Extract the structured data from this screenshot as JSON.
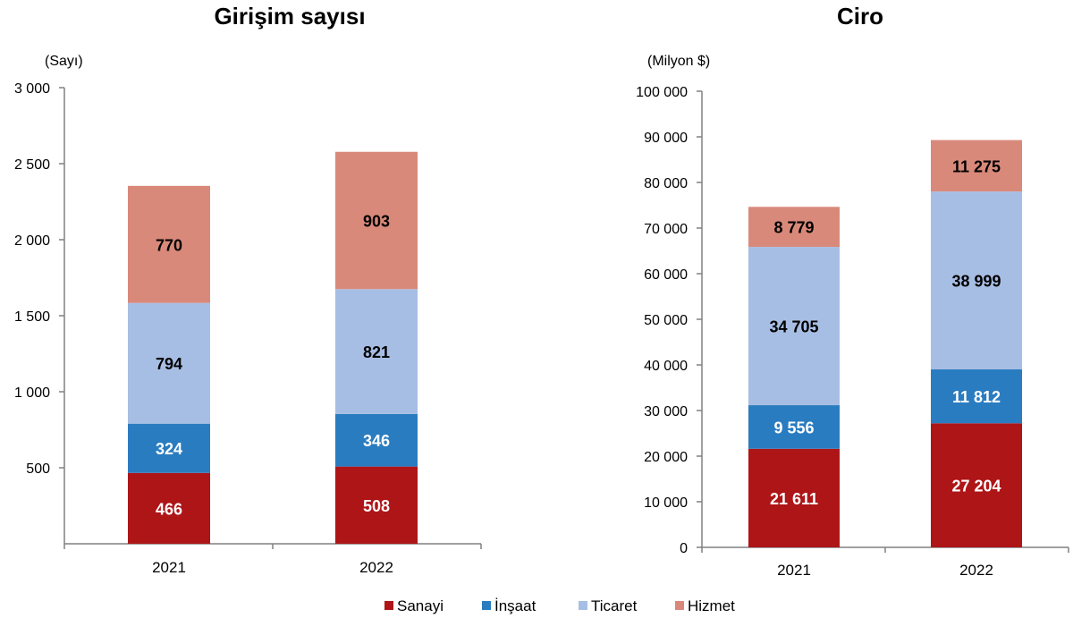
{
  "legend": [
    {
      "name": "Sanayi",
      "color": "#AE1517"
    },
    {
      "name": "İnşaat",
      "color": "#2A7CC0"
    },
    {
      "name": "Ticaret",
      "color": "#A7BEE4"
    },
    {
      "name": "Hizmet",
      "color": "#D9897A"
    }
  ],
  "chart_data": [
    {
      "type": "bar",
      "stacked": true,
      "title": "Girişim sayısı",
      "unit_label": "(Sayı)",
      "ylim": [
        0,
        3000
      ],
      "yticks": [
        500,
        1000,
        1500,
        2000,
        2500,
        3000
      ],
      "ytick_labels": [
        "500",
        "1 000",
        "1 500",
        "2 000",
        "2 500",
        "3 000"
      ],
      "categories": [
        "2021",
        "2022"
      ],
      "series": [
        {
          "name": "Sanayi",
          "values": [
            466,
            508
          ],
          "labels": [
            "466",
            "508"
          ],
          "label_color": "#ffffff"
        },
        {
          "name": "İnşaat",
          "values": [
            324,
            346
          ],
          "labels": [
            "324",
            "346"
          ],
          "label_color": "#ffffff"
        },
        {
          "name": "Ticaret",
          "values": [
            794,
            821
          ],
          "labels": [
            "794",
            "821"
          ],
          "label_color": "#000000"
        },
        {
          "name": "Hizmet",
          "values": [
            770,
            903
          ],
          "labels": [
            "770",
            "903"
          ],
          "label_color": "#000000"
        }
      ]
    },
    {
      "type": "bar",
      "stacked": true,
      "title": "Ciro",
      "unit_label": "(Milyon $)",
      "ylim": [
        0,
        100000
      ],
      "yticks": [
        0,
        10000,
        20000,
        30000,
        40000,
        50000,
        60000,
        70000,
        80000,
        90000,
        100000
      ],
      "ytick_labels": [
        "0",
        "10 000",
        "20 000",
        "30 000",
        "40 000",
        "50 000",
        "60 000",
        "70 000",
        "80 000",
        "90 000",
        "100 000"
      ],
      "categories": [
        "2021",
        "2022"
      ],
      "series": [
        {
          "name": "Sanayi",
          "values": [
            21611,
            27204
          ],
          "labels": [
            "21 611",
            "27 204"
          ],
          "label_color": "#ffffff"
        },
        {
          "name": "İnşaat",
          "values": [
            9556,
            11812
          ],
          "labels": [
            "9 556",
            "11 812"
          ],
          "label_color": "#ffffff"
        },
        {
          "name": "Ticaret",
          "values": [
            34705,
            38999
          ],
          "labels": [
            "34 705",
            "38 999"
          ],
          "label_color": "#000000"
        },
        {
          "name": "Hizmet",
          "values": [
            8779,
            11275
          ],
          "labels": [
            "8 779",
            "11 275"
          ],
          "label_color": "#000000"
        }
      ]
    }
  ]
}
